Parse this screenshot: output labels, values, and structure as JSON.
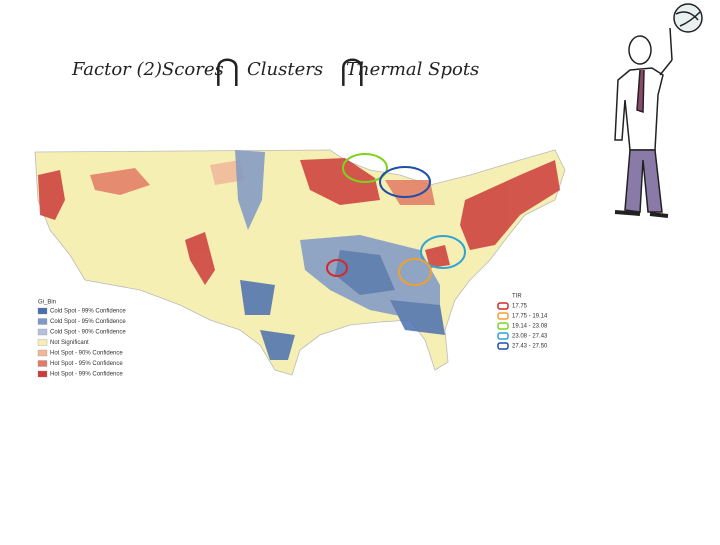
{
  "title": {
    "parts": [
      "Factor (2)Scores",
      "⋂",
      "Clusters",
      "⋂",
      "Thermal Spots"
    ]
  },
  "map_legend": {
    "title": "Gi_Bin",
    "items": [
      {
        "label": "Cold Spot - 99% Confidence",
        "color": "#4a6fb0"
      },
      {
        "label": "Cold Spot - 95% Confidence",
        "color": "#7f98c6"
      },
      {
        "label": "Cold Spot - 90% Confidence",
        "color": "#b4c2dc"
      },
      {
        "label": "Not Significant",
        "color": "#f5efb4"
      },
      {
        "label": "Hot Spot - 90% Confidence",
        "color": "#f0b79a"
      },
      {
        "label": "Hot Spot - 95% Confidence",
        "color": "#e27a65"
      },
      {
        "label": "Hot Spot - 99% Confidence",
        "color": "#cc3b3b"
      }
    ]
  },
  "tir_legend": {
    "title": "TIR",
    "items": [
      {
        "label": "17.75",
        "color": "#d62828"
      },
      {
        "label": "17.75 - 19.14",
        "color": "#f0a030"
      },
      {
        "label": "19.14 - 23.08",
        "color": "#7ed321"
      },
      {
        "label": "23.08 - 27.43",
        "color": "#2fa4d9"
      },
      {
        "label": "27.43 - 27.50",
        "color": "#1f4fa8"
      }
    ]
  }
}
